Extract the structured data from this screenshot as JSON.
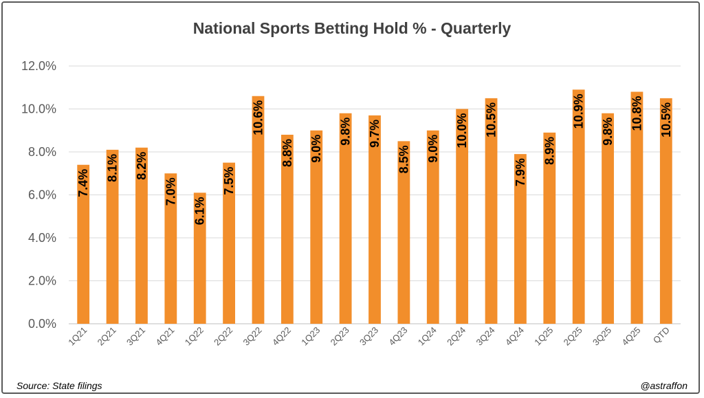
{
  "footer": {
    "source": "Source: State filings",
    "handle": "@astraffon"
  },
  "colors": {
    "bar": "#F28E2B",
    "grid": "#D9D9D9",
    "axis": "#BFBFBF"
  },
  "chart_data": {
    "type": "bar",
    "title": "National Sports Betting Hold % - Quarterly",
    "categories": [
      "1Q21",
      "2Q21",
      "3Q21",
      "4Q21",
      "1Q22",
      "2Q22",
      "3Q22",
      "4Q22",
      "1Q23",
      "2Q23",
      "3Q23",
      "4Q23",
      "1Q24",
      "2Q24",
      "3Q24",
      "4Q24",
      "1Q25",
      "2Q25",
      "3Q25",
      "4Q25",
      "QTD"
    ],
    "values": [
      7.4,
      8.1,
      8.2,
      7.0,
      6.1,
      7.5,
      10.6,
      8.8,
      9.0,
      9.8,
      9.7,
      8.5,
      9.0,
      10.0,
      10.5,
      7.9,
      8.9,
      10.9,
      9.8,
      10.8,
      10.5
    ],
    "data_labels": [
      "7.4%",
      "8.1%",
      "8.2%",
      "7.0%",
      "6.1%",
      "7.5%",
      "10.6%",
      "8.8%",
      "9.0%",
      "9.8%",
      "9.7%",
      "8.5%",
      "9.0%",
      "10.0%",
      "10.5%",
      "7.9%",
      "8.9%",
      "10.9%",
      "9.8%",
      "10.8%",
      "10.5%"
    ],
    "yticks": [
      "0.0%",
      "2.0%",
      "4.0%",
      "6.0%",
      "8.0%",
      "10.0%",
      "12.0%"
    ],
    "ytick_values": [
      0,
      2,
      4,
      6,
      8,
      10,
      12
    ],
    "ylim": [
      0,
      12
    ],
    "xlabel": "",
    "ylabel": "",
    "grid": true,
    "legend": "none"
  }
}
